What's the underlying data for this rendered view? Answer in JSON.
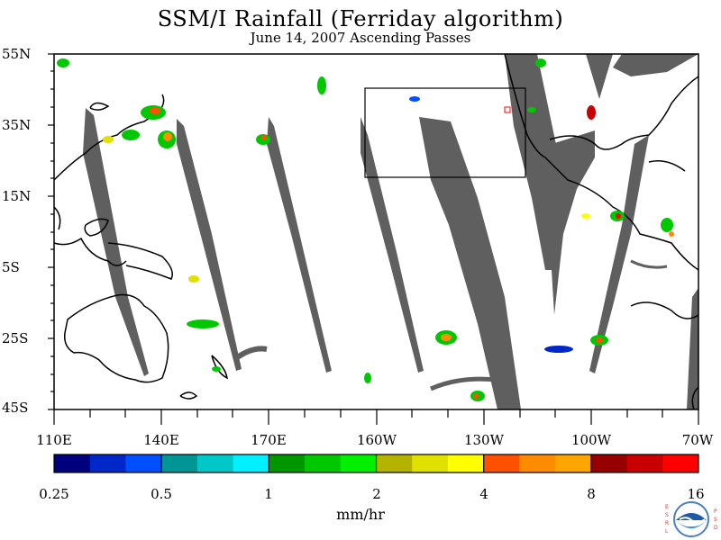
{
  "title": "SSM/I Rainfall (Ferriday algorithm)",
  "subtitle": "June 14, 2007  Ascending Passes",
  "lat_labels": [
    "55N",
    "35N",
    "15N",
    "5S",
    "25S",
    "45S"
  ],
  "lon_labels": [
    "110E",
    "140E",
    "170E",
    "160W",
    "130W",
    "100W",
    "70W"
  ],
  "colorbar": {
    "colors": [
      "#00007f",
      "#0028c8",
      "#0050ff",
      "#009696",
      "#00c8c8",
      "#00f0ff",
      "#009600",
      "#00c800",
      "#00f000",
      "#b4b400",
      "#e1e100",
      "#ffff00",
      "#ff5000",
      "#ff8c00",
      "#ffa500",
      "#960000",
      "#c80000",
      "#ff0000"
    ],
    "labels": [
      "0.25",
      "0.5",
      "1",
      "2",
      "4",
      "8",
      "16"
    ],
    "units": "mm/hr"
  },
  "colors": {
    "swath_gap": "#5f5f5f",
    "coast": "#000000",
    "land": "#ffffff"
  },
  "logo": {
    "left_letters": "E S R L",
    "right_letters": "P S D",
    "name": "NOAA"
  }
}
